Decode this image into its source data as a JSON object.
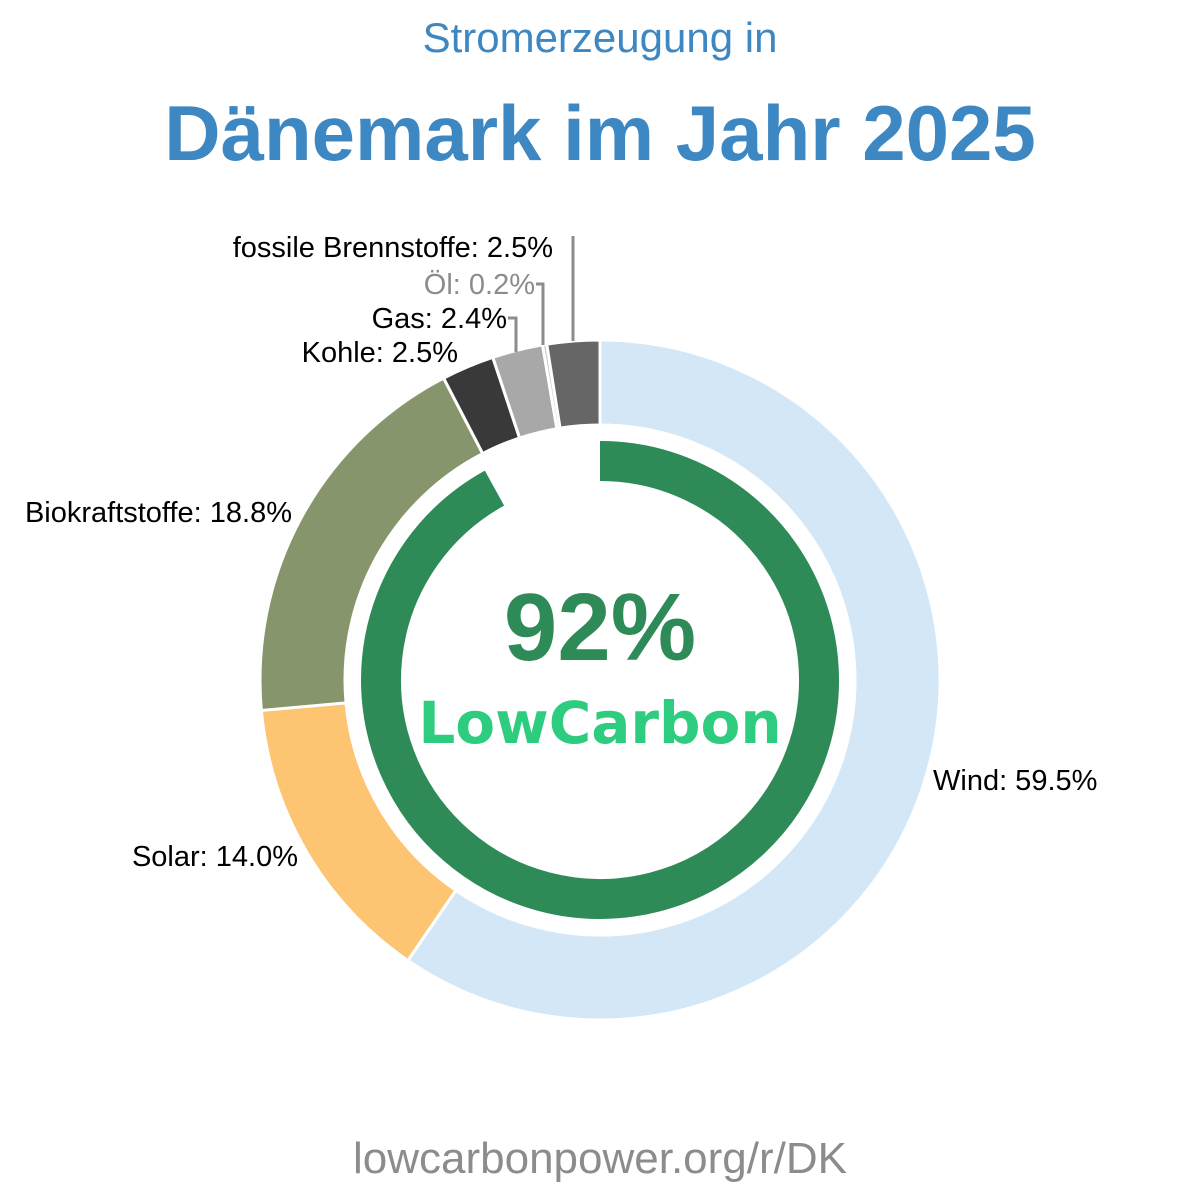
{
  "title_line1": "Stromerzeugung in",
  "title_line2": "Dänemark im Jahr 2025",
  "footer": "lowcarbonpower.org/r/DK",
  "center": {
    "value": "92%",
    "brand": "LowCarbon",
    "value_color": "#2e8b57",
    "brand_color": "#2ecc7f"
  },
  "chart_data": {
    "type": "pie",
    "series": [
      {
        "name": "Wind",
        "value": 59.5,
        "label": "Wind: 59.5%",
        "color": "#d3e7f7",
        "label_color": "#000000"
      },
      {
        "name": "Solar",
        "value": 14.0,
        "label": "Solar: 14.0%",
        "color": "#fdc572",
        "label_color": "#000000"
      },
      {
        "name": "Biokraftstoffe",
        "value": 18.8,
        "label": "Biokraftstoffe: 18.8%",
        "color": "#87956c",
        "label_color": "#000000"
      },
      {
        "name": "Kohle",
        "value": 2.5,
        "label": "Kohle: 2.5%",
        "color": "#393939",
        "label_color": "#000000"
      },
      {
        "name": "Gas",
        "value": 2.4,
        "label": "Gas: 2.4%",
        "color": "#a8a8a8",
        "label_color": "#000000"
      },
      {
        "name": "Öl",
        "value": 0.2,
        "label": "Öl: 0.2%",
        "color": "#c8c8c8",
        "label_color": "#8c8c8c"
      },
      {
        "name": "fossile Brennstoffe",
        "value": 2.5,
        "label": "fossile Brennstoffe: 2.5%",
        "color": "#666666",
        "label_color": "#000000"
      }
    ],
    "inner_ring": {
      "name": "LowCarbon",
      "value": 92,
      "color": "#2e8b57"
    }
  }
}
